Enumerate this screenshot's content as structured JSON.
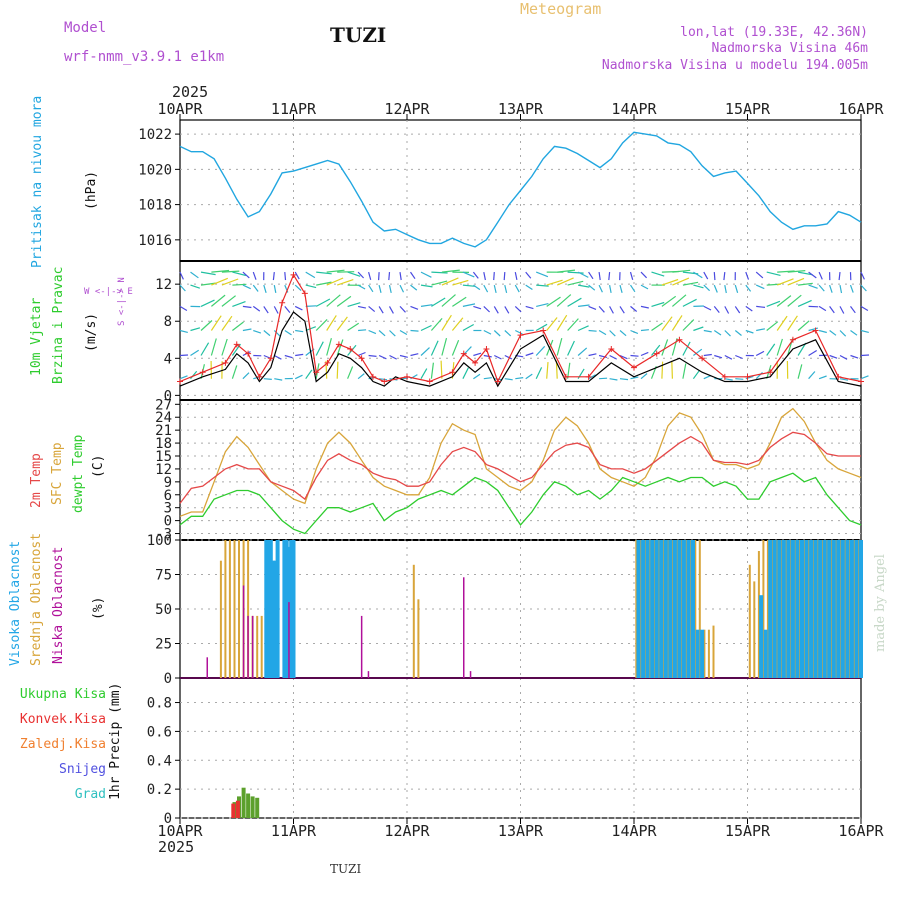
{
  "header": {
    "model_label": "Model",
    "model_name": "wrf-nmm_v3.9.1 e1km",
    "station": "TUZI",
    "title": "Meteogram",
    "lonlat": "lon,lat (19.33E, 42.36N)",
    "altitude": "Nadmorska Visina 46m",
    "model_altitude": "Nadmorska Visina u modelu 194.005m",
    "footer_station": "TUZI",
    "credit": "made by Angel"
  },
  "colors": {
    "pressure": "#21a6e0",
    "wind_speed": "#000000",
    "gust": "#e82828",
    "temp2m": "#e54848",
    "sfc_temp": "#d8a53a",
    "dewpt": "#2ecc2e",
    "high_cloud": "#22a6e6",
    "mid_cloud": "#d8a53a",
    "low_cloud": "#b0109a",
    "total_rain": "#5ca02c",
    "conv_rain": "#e83030",
    "frozen": "#f08030",
    "snow": "#5050e0",
    "hail": "#30c0c0",
    "wind_label": "#2ecc2e",
    "wind_compass": "#b050d0"
  },
  "chart_data": [
    {
      "type": "line",
      "panel": "pressure",
      "ylabel": "(hPa)",
      "side_label": "Pritisak na nivou mora",
      "x_ticks": [
        "10APR",
        "11APR",
        "12APR",
        "13APR",
        "14APR",
        "15APR",
        "16APR"
      ],
      "x_top_year": "2025",
      "ylim": [
        1014.8,
        1022.8
      ],
      "yticks": [
        1016,
        1018,
        1020,
        1022
      ],
      "x_unit": "day",
      "series": [
        {
          "x": [
            0,
            0.1,
            0.2,
            0.3,
            0.4,
            0.5,
            0.6,
            0.7,
            0.8,
            0.9,
            1.0,
            1.1,
            1.2,
            1.3,
            1.4,
            1.5,
            1.6,
            1.7,
            1.8,
            1.9,
            2.0,
            2.1,
            2.2,
            2.3,
            2.4,
            2.5,
            2.6,
            2.7,
            2.8,
            2.9,
            3.0,
            3.1,
            3.2,
            3.3,
            3.4,
            3.5,
            3.6,
            3.7,
            3.8,
            3.9,
            4.0,
            4.1,
            4.2,
            4.3,
            4.4,
            4.5,
            4.6,
            4.7,
            4.8,
            4.9,
            5.0,
            5.1,
            5.2,
            5.3,
            5.4,
            5.5,
            5.6,
            5.7,
            5.8,
            5.9,
            6.0
          ],
          "y": [
            1021.3,
            1021.0,
            1021.0,
            1020.6,
            1019.5,
            1018.3,
            1017.3,
            1017.6,
            1018.6,
            1019.8,
            1019.9,
            1020.1,
            1020.3,
            1020.5,
            1020.3,
            1019.3,
            1018.2,
            1017.0,
            1016.5,
            1016.6,
            1016.3,
            1016.0,
            1015.8,
            1015.8,
            1016.1,
            1015.8,
            1015.6,
            1016.0,
            1017.0,
            1018.0,
            1018.8,
            1019.6,
            1020.6,
            1021.3,
            1021.2,
            1020.9,
            1020.5,
            1020.1,
            1020.6,
            1021.5,
            1022.1,
            1022.0,
            1021.9,
            1021.5,
            1021.4,
            1021.0,
            1020.2,
            1019.6,
            1019.8,
            1019.9,
            1019.2,
            1018.5,
            1017.6,
            1017.0,
            1016.6,
            1016.8,
            1016.8,
            1016.9,
            1017.6,
            1017.4,
            1017.0
          ]
        }
      ]
    },
    {
      "type": "line",
      "panel": "wind",
      "ylabel": "(m/s)",
      "side_label_1": "10m Vjetar",
      "side_label_2": "Brzina i Pravac",
      "compass": "W <-|-> E",
      "compass_vertical": "S <-|-> N",
      "ylim": [
        -0.5,
        14.5
      ],
      "yticks": [
        0,
        4,
        8,
        12
      ],
      "series": [
        {
          "name": "speed",
          "x": [
            0,
            0.2,
            0.4,
            0.5,
            0.6,
            0.7,
            0.8,
            0.9,
            1.0,
            1.1,
            1.2,
            1.3,
            1.4,
            1.5,
            1.6,
            1.7,
            1.8,
            1.9,
            2.0,
            2.2,
            2.4,
            2.5,
            2.6,
            2.7,
            2.8,
            3.0,
            3.2,
            3.4,
            3.6,
            3.8,
            4.0,
            4.2,
            4.4,
            4.6,
            4.8,
            5.0,
            5.2,
            5.4,
            5.6,
            5.8,
            6.0
          ],
          "y": [
            1.0,
            2.0,
            2.8,
            4.5,
            3.5,
            1.5,
            3.0,
            7.0,
            9.0,
            8.0,
            1.5,
            2.5,
            4.5,
            4.0,
            3.0,
            1.5,
            1.0,
            2.0,
            1.5,
            1.0,
            2.0,
            3.5,
            2.5,
            3.5,
            1.0,
            5.0,
            6.5,
            1.5,
            1.5,
            3.5,
            2.0,
            3.0,
            4.0,
            2.5,
            1.5,
            1.5,
            2.0,
            5.0,
            6.0,
            1.5,
            1.0
          ]
        },
        {
          "name": "gust",
          "x": [
            0,
            0.2,
            0.4,
            0.5,
            0.6,
            0.7,
            0.8,
            0.9,
            1.0,
            1.1,
            1.2,
            1.3,
            1.4,
            1.5,
            1.6,
            1.7,
            1.8,
            2.0,
            2.2,
            2.4,
            2.5,
            2.6,
            2.7,
            2.8,
            3.0,
            3.2,
            3.4,
            3.6,
            3.8,
            4.0,
            4.2,
            4.4,
            4.6,
            4.8,
            5.0,
            5.2,
            5.4,
            5.6,
            5.8,
            6.0
          ],
          "y": [
            1.5,
            2.5,
            3.5,
            5.5,
            4.5,
            2.0,
            4.0,
            10.0,
            13.0,
            11.0,
            2.5,
            3.5,
            5.5,
            5.0,
            4.0,
            2.0,
            1.5,
            2.0,
            1.5,
            2.5,
            4.5,
            3.5,
            5.0,
            1.5,
            6.5,
            7.0,
            2.0,
            2.0,
            5.0,
            3.0,
            4.5,
            6.0,
            4.0,
            2.0,
            2.0,
            2.5,
            6.0,
            7.0,
            2.0,
            1.5
          ]
        }
      ]
    },
    {
      "type": "line",
      "panel": "temperature",
      "ylabel": "(C)",
      "side_label_1": "2m Temp",
      "side_label_2": "SFC Temp",
      "side_label_3": "dewpt Temp",
      "ylim": [
        -4.5,
        28
      ],
      "yticks": [
        -3,
        0,
        3,
        6,
        9,
        12,
        15,
        18,
        21,
        24,
        27
      ],
      "series": [
        {
          "name": "2m",
          "x": [
            0,
            0.1,
            0.2,
            0.3,
            0.4,
            0.5,
            0.6,
            0.7,
            0.8,
            0.9,
            1.0,
            1.1,
            1.2,
            1.3,
            1.4,
            1.5,
            1.6,
            1.7,
            1.8,
            1.9,
            2.0,
            2.1,
            2.2,
            2.3,
            2.4,
            2.5,
            2.6,
            2.7,
            2.8,
            2.9,
            3.0,
            3.1,
            3.2,
            3.3,
            3.4,
            3.5,
            3.6,
            3.7,
            3.8,
            3.9,
            4.0,
            4.1,
            4.2,
            4.3,
            4.4,
            4.5,
            4.6,
            4.7,
            4.8,
            4.9,
            5.0,
            5.1,
            5.2,
            5.3,
            5.4,
            5.5,
            5.6,
            5.7,
            5.8,
            5.9,
            6.0
          ],
          "y": [
            4,
            7.5,
            8,
            10,
            12,
            13,
            12,
            12,
            9,
            8,
            7,
            5,
            10,
            14,
            15.5,
            14,
            13,
            11,
            10,
            9.5,
            8,
            8,
            9,
            13,
            16,
            17,
            16,
            13,
            12,
            10.5,
            9,
            10,
            13,
            16,
            17.5,
            18,
            17,
            13,
            12,
            12,
            11,
            12,
            14,
            16,
            18,
            19.5,
            18,
            14,
            13.5,
            13.5,
            13,
            14,
            17,
            19,
            20.5,
            20,
            18,
            15.5,
            15,
            15,
            15
          ]
        },
        {
          "name": "sfc",
          "x": [
            0,
            0.1,
            0.2,
            0.3,
            0.4,
            0.5,
            0.6,
            0.7,
            0.8,
            0.9,
            1.0,
            1.1,
            1.2,
            1.3,
            1.4,
            1.5,
            1.6,
            1.7,
            1.8,
            1.9,
            2.0,
            2.1,
            2.2,
            2.3,
            2.4,
            2.5,
            2.6,
            2.7,
            2.8,
            2.9,
            3.0,
            3.1,
            3.2,
            3.3,
            3.4,
            3.5,
            3.6,
            3.7,
            3.8,
            3.9,
            4.0,
            4.1,
            4.2,
            4.3,
            4.4,
            4.5,
            4.6,
            4.7,
            4.8,
            4.9,
            5.0,
            5.1,
            5.2,
            5.3,
            5.4,
            5.5,
            5.6,
            5.7,
            5.8,
            5.9,
            6.0
          ],
          "y": [
            1,
            2,
            2,
            9,
            16,
            19.5,
            17,
            13,
            9,
            7,
            5,
            4,
            12,
            18,
            20.5,
            18,
            14,
            10,
            8,
            7,
            6,
            6,
            10,
            18,
            22.5,
            21,
            20,
            12,
            10,
            8,
            7,
            9,
            14,
            21,
            24,
            22,
            18,
            12,
            10,
            9,
            8,
            10,
            15,
            22,
            25,
            24,
            20,
            14,
            13,
            13,
            12,
            13,
            18,
            24,
            26,
            23,
            18,
            14,
            12,
            11,
            10
          ]
        },
        {
          "name": "dewpt",
          "x": [
            0,
            0.1,
            0.2,
            0.3,
            0.4,
            0.5,
            0.6,
            0.7,
            0.8,
            0.9,
            1.0,
            1.1,
            1.2,
            1.3,
            1.4,
            1.5,
            1.6,
            1.7,
            1.8,
            1.9,
            2.0,
            2.1,
            2.2,
            2.3,
            2.4,
            2.5,
            2.6,
            2.7,
            2.8,
            2.9,
            3.0,
            3.1,
            3.2,
            3.3,
            3.4,
            3.5,
            3.6,
            3.7,
            3.8,
            3.9,
            4.0,
            4.1,
            4.2,
            4.3,
            4.4,
            4.5,
            4.6,
            4.7,
            4.8,
            4.9,
            5.0,
            5.1,
            5.2,
            5.3,
            5.4,
            5.5,
            5.6,
            5.7,
            5.8,
            5.9,
            6.0
          ],
          "y": [
            -1,
            1,
            1,
            5,
            6,
            7,
            7,
            6,
            3,
            0,
            -2,
            -3,
            0,
            3,
            3,
            2,
            3,
            4,
            0,
            2,
            3,
            5,
            6,
            7,
            6,
            8,
            10,
            9,
            7,
            3,
            -1,
            2,
            6,
            9,
            8,
            6,
            7,
            5,
            7,
            10,
            9,
            8,
            9,
            10,
            9,
            10,
            10,
            8,
            9,
            8,
            5,
            5,
            9,
            10,
            11,
            9,
            10,
            6,
            3,
            0,
            -1
          ]
        }
      ]
    },
    {
      "type": "bar",
      "panel": "cloud",
      "ylabel": "(%)",
      "side_label_1": "Visoka Oblacnost",
      "side_label_2": "Srednja Oblacnost",
      "side_label_3": "Niska Oblacnost",
      "ylim": [
        0,
        100
      ],
      "yticks": [
        0,
        25,
        50,
        75,
        100
      ],
      "series": [
        {
          "name": "high",
          "x": [
            0.76,
            0.78,
            0.8,
            0.82,
            0.84,
            0.86,
            0.92,
            0.94,
            0.96,
            0.98,
            1.0,
            4.04,
            4.08,
            4.12,
            4.16,
            4.2,
            4.24,
            4.28,
            4.32,
            4.36,
            4.4,
            4.44,
            4.48,
            4.52,
            4.56,
            4.6,
            5.12,
            5.16,
            5.2,
            5.24,
            5.28,
            5.32,
            5.36,
            5.4,
            5.44,
            5.48,
            5.52,
            5.56,
            5.6,
            5.64,
            5.68,
            5.72,
            5.76,
            5.8,
            5.84,
            5.88,
            5.92,
            5.96,
            6.0
          ],
          "y": [
            100,
            100,
            100,
            85,
            85,
            100,
            100,
            100,
            95,
            100,
            100,
            100,
            100,
            100,
            100,
            100,
            100,
            100,
            100,
            100,
            100,
            100,
            100,
            100,
            35,
            35,
            60,
            35,
            100,
            100,
            100,
            100,
            100,
            100,
            100,
            100,
            100,
            100,
            100,
            100,
            100,
            100,
            100,
            100,
            100,
            100,
            100,
            100,
            100
          ]
        },
        {
          "name": "mid",
          "x": [
            0.36,
            0.4,
            0.44,
            0.48,
            0.52,
            0.56,
            0.6,
            0.64,
            0.68,
            0.72,
            2.06,
            2.1,
            4.02,
            4.06,
            4.1,
            4.14,
            4.18,
            4.22,
            4.26,
            4.3,
            4.34,
            4.38,
            4.42,
            4.46,
            4.5,
            4.54,
            4.58,
            4.62,
            4.66,
            4.7,
            5.02,
            5.06,
            5.1,
            5.14,
            5.18,
            5.22,
            5.26,
            5.3,
            5.34,
            5.38,
            5.42,
            5.46,
            5.5,
            5.54,
            5.58,
            5.62,
            5.66,
            5.7,
            5.74,
            5.78,
            5.82,
            5.86,
            5.9,
            5.94,
            5.98
          ],
          "y": [
            85,
            100,
            100,
            100,
            100,
            100,
            100,
            45,
            45,
            45,
            82,
            57,
            100,
            100,
            100,
            100,
            100,
            100,
            100,
            100,
            100,
            100,
            100,
            100,
            100,
            100,
            100,
            35,
            35,
            38,
            82,
            70,
            92,
            100,
            100,
            100,
            100,
            100,
            100,
            100,
            100,
            100,
            100,
            100,
            100,
            100,
            100,
            100,
            100,
            100,
            100,
            100,
            100,
            100,
            100
          ]
        },
        {
          "name": "low",
          "x": [
            0.24,
            0.56,
            0.6,
            0.64,
            0.96,
            1.6,
            1.66,
            2.5,
            2.56
          ],
          "y": [
            15,
            67,
            45,
            45,
            55,
            45,
            5,
            73,
            5
          ]
        }
      ]
    },
    {
      "type": "bar",
      "panel": "precip",
      "ylabel": "1hr Precip (mm)",
      "legend": [
        "Ukupna Kisa",
        "Konvek.Kisa",
        "Zaledj.Kisa",
        "Snijeg",
        "Grad"
      ],
      "x_ticks": [
        "10APR",
        "11APR",
        "12APR",
        "13APR",
        "14APR",
        "15APR",
        "16APR"
      ],
      "x_bottom_year": "2025",
      "ylim": [
        0,
        0.97
      ],
      "yticks": [
        0,
        0.2,
        0.4,
        0.6,
        0.8
      ],
      "series": [
        {
          "name": "total",
          "x": [
            0.48,
            0.52,
            0.56,
            0.6,
            0.64,
            0.68
          ],
          "y": [
            0.11,
            0.15,
            0.21,
            0.17,
            0.15,
            0.14
          ]
        },
        {
          "name": "convective",
          "x": [
            0.47,
            0.51
          ],
          "y": [
            0.1,
            0.12
          ]
        }
      ]
    }
  ]
}
